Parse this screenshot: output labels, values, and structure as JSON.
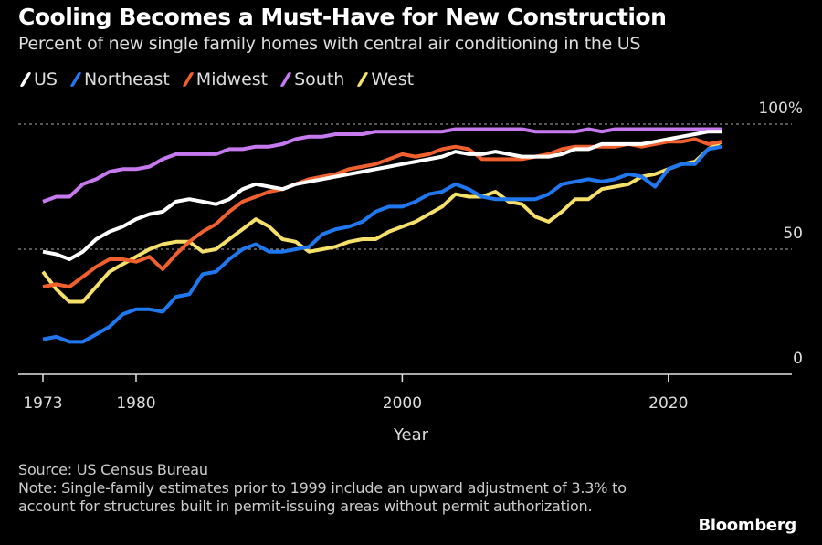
{
  "header": {
    "title": "Cooling Becomes a Must-Have for New Construction",
    "subtitle": "Percent of new single family homes with central air conditioning in the US"
  },
  "legend": [
    {
      "name": "US",
      "color": "#ffffff"
    },
    {
      "name": "Northeast",
      "color": "#1f78f0"
    },
    {
      "name": "Midwest",
      "color": "#f0602e"
    },
    {
      "name": "South",
      "color": "#c77af0"
    },
    {
      "name": "West",
      "color": "#f5e06a"
    }
  ],
  "chart_data": {
    "type": "line",
    "title": "Cooling Becomes a Must-Have for New Construction",
    "subtitle": "Percent of new single family homes with central air conditioning in the US",
    "xlabel": "Year",
    "ylabel": "",
    "xlim": [
      1973,
      2024
    ],
    "ylim": [
      0,
      100
    ],
    "x_ticks": [
      1973,
      1980,
      2000,
      2020
    ],
    "y_ticks": [
      {
        "value": 0,
        "label": "0"
      },
      {
        "value": 50,
        "label": "50"
      },
      {
        "value": 100,
        "label": "100%"
      }
    ],
    "gridlines": "dotted horizontal at 50 and 100",
    "legend_position": "top-left",
    "x": [
      1973,
      1974,
      1975,
      1976,
      1977,
      1978,
      1979,
      1980,
      1981,
      1982,
      1983,
      1984,
      1985,
      1986,
      1987,
      1988,
      1989,
      1990,
      1991,
      1992,
      1993,
      1994,
      1995,
      1996,
      1997,
      1998,
      1999,
      2000,
      2001,
      2002,
      2003,
      2004,
      2005,
      2006,
      2007,
      2008,
      2009,
      2010,
      2011,
      2012,
      2013,
      2014,
      2015,
      2016,
      2017,
      2018,
      2019,
      2020,
      2021,
      2022,
      2023,
      2024
    ],
    "series": [
      {
        "name": "US",
        "color": "#ffffff",
        "values": [
          49,
          48,
          46,
          49,
          54,
          57,
          59,
          62,
          64,
          65,
          69,
          70,
          69,
          68,
          70,
          74,
          76,
          75,
          74,
          76,
          77,
          78,
          79,
          80,
          81,
          82,
          83,
          84,
          85,
          86,
          87,
          89,
          88,
          88,
          89,
          88,
          87,
          87,
          87,
          88,
          90,
          90,
          92,
          92,
          92,
          92,
          93,
          94,
          95,
          96,
          97,
          97
        ]
      },
      {
        "name": "Northeast",
        "color": "#1f78f0",
        "values": [
          14,
          15,
          13,
          13,
          16,
          19,
          24,
          26,
          26,
          25,
          31,
          32,
          40,
          41,
          46,
          50,
          52,
          49,
          49,
          50,
          51,
          56,
          58,
          59,
          61,
          65,
          67,
          67,
          69,
          72,
          73,
          76,
          74,
          71,
          70,
          70,
          70,
          70,
          72,
          76,
          77,
          78,
          77,
          78,
          80,
          79,
          75,
          82,
          84,
          84,
          90,
          91
        ]
      },
      {
        "name": "Midwest",
        "color": "#f0602e",
        "values": [
          35,
          36,
          35,
          39,
          43,
          46,
          46,
          45,
          47,
          42,
          48,
          53,
          57,
          60,
          65,
          69,
          71,
          73,
          74,
          76,
          78,
          79,
          80,
          82,
          83,
          84,
          86,
          88,
          87,
          88,
          90,
          91,
          90,
          86,
          86,
          86,
          86,
          87,
          88,
          90,
          91,
          91,
          91,
          91,
          92,
          91,
          92,
          93,
          93,
          94,
          92,
          93
        ]
      },
      {
        "name": "South",
        "color": "#c77af0",
        "values": [
          69,
          71,
          71,
          76,
          78,
          81,
          82,
          82,
          83,
          86,
          88,
          88,
          88,
          88,
          90,
          90,
          91,
          91,
          92,
          94,
          95,
          95,
          96,
          96,
          96,
          97,
          97,
          97,
          97,
          97,
          97,
          98,
          98,
          98,
          98,
          98,
          98,
          97,
          97,
          97,
          97,
          98,
          97,
          98,
          98,
          98,
          98,
          98,
          98,
          98,
          98,
          98
        ]
      },
      {
        "name": "West",
        "color": "#f5e06a",
        "values": [
          41,
          34,
          29,
          29,
          35,
          41,
          44,
          47,
          50,
          52,
          53,
          53,
          49,
          50,
          54,
          58,
          62,
          59,
          54,
          53,
          49,
          50,
          51,
          53,
          54,
          54,
          57,
          59,
          61,
          64,
          67,
          72,
          71,
          71,
          73,
          69,
          68,
          63,
          61,
          65,
          70,
          70,
          74,
          75,
          76,
          79,
          80,
          82,
          84,
          85,
          90,
          93
        ]
      }
    ]
  },
  "axis": {
    "x_ticks": [
      "1973",
      "1980",
      "2000",
      "2020"
    ],
    "y_ticks": [
      "100%",
      "50",
      "0"
    ],
    "xlabel": "Year"
  },
  "footer": {
    "source": "Source: US Census Bureau",
    "note": "Note: Single-family estimates prior to 1999 include an upward adjustment of 3.3% to account for structures built in permit-issuing areas without permit authorization."
  },
  "branding": {
    "logo": "Bloomberg"
  }
}
